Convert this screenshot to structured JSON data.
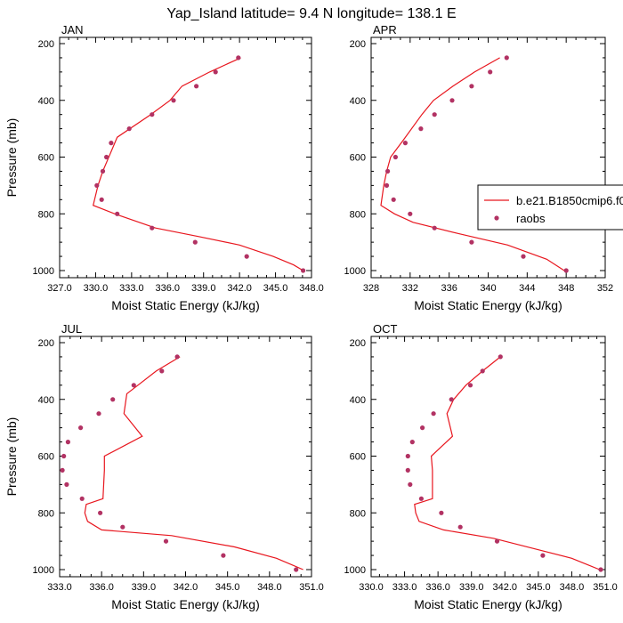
{
  "title": "Yap_Island  latitude= 9.4 N longitude= 138.1 E",
  "colors": {
    "model_line": "#e8161e",
    "obs_marker": "#b23263",
    "axis": "#000000"
  },
  "legend": {
    "model_label": "b.e21.B1850cmip6.f0",
    "obs_label": "raobs"
  },
  "chart_data": [
    {
      "type": "line",
      "panel_label": "JAN",
      "xlabel": "Moist Static Energy (kJ/kg)",
      "ylabel": "Pressure (mb)",
      "xlim": [
        327,
        348
      ],
      "xticks": [
        327,
        330,
        333,
        336,
        339,
        342,
        345,
        348
      ],
      "xtick_labels": [
        "327.0",
        "330.0",
        "333.0",
        "336.0",
        "339.0",
        "342.0",
        "345.0",
        "348.0"
      ],
      "ylim": [
        200,
        1000
      ],
      "yticks": [
        200,
        400,
        600,
        800,
        1000
      ],
      "ytick_labels": [
        "200",
        "400",
        "600",
        "800",
        "1000"
      ],
      "series": [
        {
          "name": "b.e21.B1850cmip6.f0",
          "style": "line",
          "x": [
            342.1,
            339.5,
            337.2,
            336.2,
            334.6,
            331.8,
            331.0,
            330.6,
            330.2,
            329.8,
            331.6,
            335.0,
            338.6,
            342.0,
            344.8,
            346.5,
            347.3
          ],
          "y": [
            250,
            300,
            350,
            400,
            450,
            530,
            610,
            650,
            700,
            770,
            800,
            850,
            880,
            910,
            950,
            980,
            1000
          ]
        },
        {
          "name": "raobs",
          "style": "markers",
          "x": [
            341.9,
            340.0,
            338.4,
            336.5,
            334.7,
            332.8,
            331.3,
            330.9,
            330.6,
            330.1,
            330.5,
            331.8,
            334.7,
            338.3,
            342.6,
            347.3
          ],
          "y": [
            250,
            300,
            350,
            400,
            450,
            500,
            550,
            600,
            650,
            700,
            750,
            800,
            850,
            900,
            950,
            1000
          ]
        }
      ]
    },
    {
      "type": "line",
      "panel_label": "APR",
      "xlabel": "Moist Static Energy (kJ/kg)",
      "ylabel": "",
      "xlim": [
        328,
        352
      ],
      "xticks": [
        328,
        332,
        336,
        340,
        344,
        348,
        352
      ],
      "xtick_labels": [
        "328",
        "332",
        "336",
        "340",
        "344",
        "348",
        "352"
      ],
      "ylim": [
        200,
        1000
      ],
      "yticks": [
        200,
        400,
        600,
        800,
        1000
      ],
      "ytick_labels": [
        "200",
        "400",
        "600",
        "800",
        "1000"
      ],
      "series": [
        {
          "name": "b.e21.B1850cmip6.f0",
          "style": "line",
          "x": [
            341.2,
            338.6,
            336.4,
            334.4,
            333.2,
            331.3,
            330.0,
            329.6,
            329.3,
            329.0,
            330.4,
            332.3,
            337.0,
            342.0,
            346.0,
            347.8
          ],
          "y": [
            250,
            300,
            350,
            400,
            450,
            540,
            600,
            650,
            700,
            770,
            800,
            830,
            870,
            910,
            960,
            1000
          ]
        },
        {
          "name": "raobs",
          "style": "markers",
          "x": [
            341.9,
            340.2,
            338.3,
            336.3,
            334.5,
            333.1,
            331.5,
            330.5,
            329.7,
            329.6,
            330.3,
            332.0,
            334.5,
            338.3,
            343.6,
            348.0
          ],
          "y": [
            250,
            300,
            350,
            400,
            450,
            500,
            550,
            600,
            650,
            700,
            750,
            800,
            850,
            900,
            950,
            1000
          ]
        }
      ]
    },
    {
      "type": "line",
      "panel_label": "JUL",
      "xlabel": "Moist Static Energy (kJ/kg)",
      "ylabel": "Pressure (mb)",
      "xlim": [
        333,
        351
      ],
      "xticks": [
        333,
        336,
        339,
        342,
        345,
        348,
        351
      ],
      "xtick_labels": [
        "333.0",
        "336.0",
        "339.0",
        "342.0",
        "345.0",
        "348.0",
        "351.0"
      ],
      "ylim": [
        200,
        1000
      ],
      "yticks": [
        200,
        400,
        600,
        800,
        1000
      ],
      "ytick_labels": [
        "200",
        "400",
        "600",
        "800",
        "1000"
      ],
      "series": [
        {
          "name": "b.e21.B1850cmip6.f0",
          "style": "line",
          "x": [
            341.6,
            339.9,
            338.6,
            337.8,
            337.6,
            338.9,
            336.2,
            336.2,
            336.1,
            334.9,
            334.8,
            335.0,
            336.0,
            341.0,
            345.5,
            348.5,
            350.4
          ],
          "y": [
            250,
            300,
            350,
            380,
            450,
            530,
            600,
            650,
            750,
            770,
            800,
            830,
            860,
            880,
            920,
            960,
            1000
          ]
        },
        {
          "name": "raobs",
          "style": "markers",
          "x": [
            341.4,
            340.3,
            338.3,
            336.8,
            335.8,
            334.5,
            333.6,
            333.3,
            333.2,
            333.5,
            334.6,
            335.9,
            337.5,
            340.6,
            344.7,
            349.9
          ],
          "y": [
            250,
            300,
            350,
            400,
            450,
            500,
            550,
            600,
            650,
            700,
            750,
            800,
            850,
            900,
            950,
            1000
          ]
        }
      ]
    },
    {
      "type": "line",
      "panel_label": "OCT",
      "xlabel": "Moist Static Energy (kJ/kg)",
      "ylabel": "",
      "xlim": [
        330,
        351
      ],
      "xticks": [
        330,
        333,
        336,
        339,
        342,
        345,
        348,
        351
      ],
      "xtick_labels": [
        "330.0",
        "333.0",
        "336.0",
        "339.0",
        "342.0",
        "345.0",
        "348.0",
        "351.0"
      ],
      "ylim": [
        200,
        1000
      ],
      "yticks": [
        200,
        400,
        600,
        800,
        1000
      ],
      "ytick_labels": [
        "200",
        "400",
        "600",
        "800",
        "1000"
      ],
      "series": [
        {
          "name": "b.e21.B1850cmip6.f0",
          "style": "line",
          "x": [
            341.6,
            340.0,
            338.5,
            337.4,
            336.8,
            337.3,
            335.4,
            335.5,
            335.5,
            333.9,
            334.0,
            334.3,
            336.5,
            341.0,
            345.0,
            348.0,
            350.5
          ],
          "y": [
            250,
            300,
            350,
            400,
            450,
            530,
            600,
            650,
            750,
            770,
            800,
            830,
            860,
            890,
            930,
            960,
            1000
          ]
        },
        {
          "name": "raobs",
          "style": "markers",
          "x": [
            341.6,
            340.0,
            338.9,
            337.2,
            335.6,
            334.6,
            333.7,
            333.3,
            333.3,
            333.5,
            334.5,
            336.3,
            338.0,
            341.3,
            345.4,
            350.6
          ],
          "y": [
            250,
            300,
            350,
            400,
            450,
            500,
            550,
            600,
            650,
            700,
            750,
            800,
            850,
            900,
            950,
            1000
          ]
        }
      ]
    }
  ]
}
